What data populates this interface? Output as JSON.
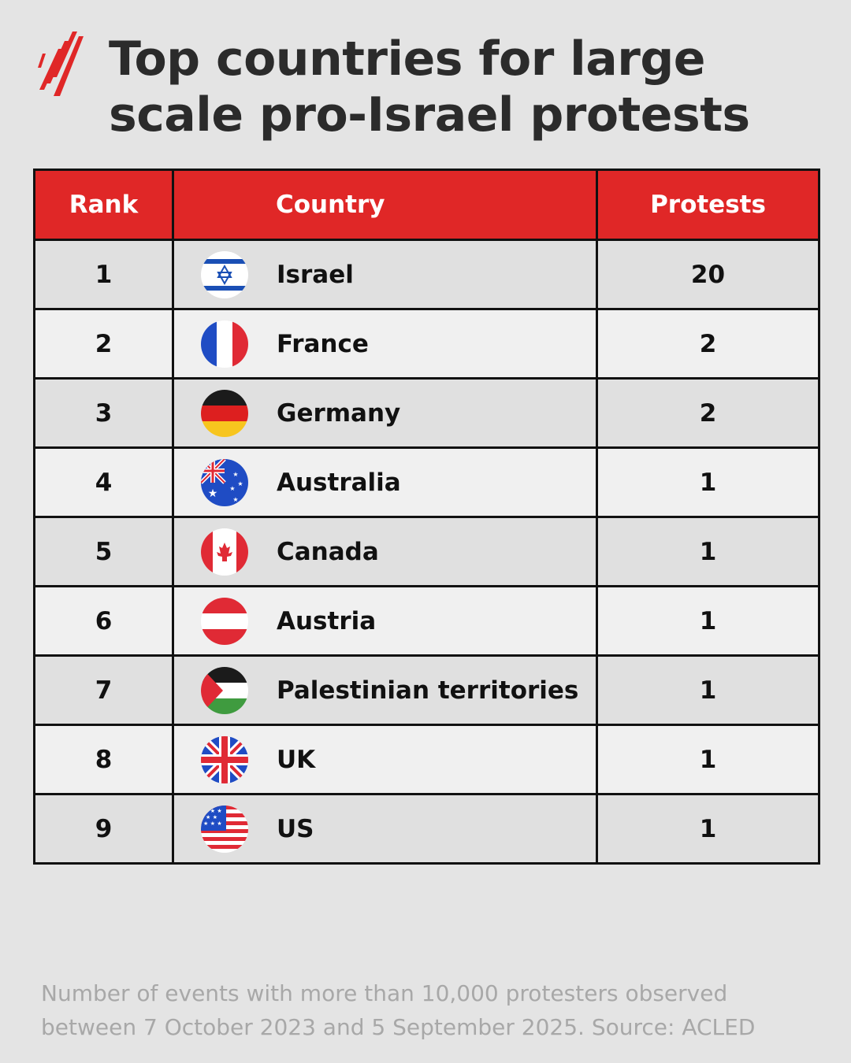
{
  "title": {
    "line1": "Top countries for large",
    "line2": "scale pro-Israel protests"
  },
  "colors": {
    "header_bg": "#e02727",
    "header_text": "#ffffff",
    "row_odd": "#e0e0e0",
    "row_even": "#f0f0f0",
    "background": "#e4e4e4",
    "logo": "#e02727"
  },
  "chart_data": {
    "type": "table",
    "columns": [
      "Rank",
      "Country",
      "Protests"
    ],
    "rows": [
      {
        "rank": "1",
        "country": "Israel",
        "protests": 20,
        "flag": "israel-flag-icon"
      },
      {
        "rank": "2",
        "country": "France",
        "protests": 2,
        "flag": "france-flag-icon"
      },
      {
        "rank": "3",
        "country": "Germany",
        "protests": 2,
        "flag": "germany-flag-icon"
      },
      {
        "rank": "4",
        "country": "Australia",
        "protests": 1,
        "flag": "australia-flag-icon"
      },
      {
        "rank": "5",
        "country": "Canada",
        "protests": 1,
        "flag": "canada-flag-icon"
      },
      {
        "rank": "6",
        "country": "Austria",
        "protests": 1,
        "flag": "austria-flag-icon"
      },
      {
        "rank": "7",
        "country": "Palestinian territories",
        "protests": 1,
        "flag": "palestine-flag-icon"
      },
      {
        "rank": "8",
        "country": "UK",
        "protests": 1,
        "flag": "uk-flag-icon"
      },
      {
        "rank": "9",
        "country": "US",
        "protests": 1,
        "flag": "us-flag-icon"
      }
    ]
  },
  "footnote": {
    "line1": "Number of events with more than 10,000 protesters observed",
    "line2": "between 7 October 2023 and 5 September 2025. Source: ACLED"
  }
}
